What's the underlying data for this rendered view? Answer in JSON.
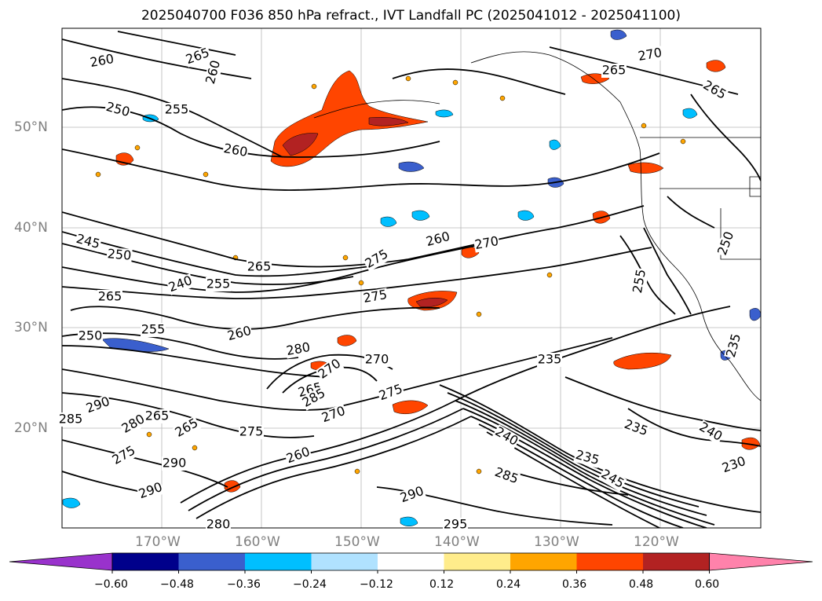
{
  "title": "2025040700 F036 850 hPa refract., IVT Landfall PC (2025041012 - 2025041100)",
  "map": {
    "lat_labels": [
      "50°N",
      "40°N",
      "30°N",
      "20°N"
    ],
    "lon_labels": [
      "170°W",
      "160°W",
      "150°W",
      "140°W",
      "130°W",
      "120°W"
    ],
    "contour_labels": [
      "260",
      "265",
      "260",
      "250",
      "255",
      "260",
      "245",
      "250",
      "265",
      "240",
      "255",
      "265",
      "255",
      "250",
      "260",
      "275",
      "260",
      "270",
      "275",
      "280",
      "265",
      "270",
      "270",
      "275",
      "285",
      "280",
      "265",
      "265",
      "235",
      "270",
      "275",
      "260",
      "285",
      "290",
      "240",
      "235",
      "245",
      "290",
      "295",
      "285",
      "290",
      "280",
      "290",
      "275",
      "235",
      "240",
      "230",
      "250",
      "255",
      "265",
      "270",
      "265",
      "235"
    ]
  },
  "colorbar": {
    "ticks": [
      "−0.60",
      "−0.48",
      "−0.36",
      "−0.24",
      "−0.12",
      "0.12",
      "0.24",
      "0.36",
      "0.48",
      "0.60"
    ],
    "colors": [
      "#9932cc",
      "#00008b",
      "#3a5fcd",
      "#00bfff",
      "#b0e2ff",
      "#ffffff",
      "#ffec8b",
      "#ffa500",
      "#ff4500",
      "#b22222",
      "#ff82ab"
    ]
  }
}
